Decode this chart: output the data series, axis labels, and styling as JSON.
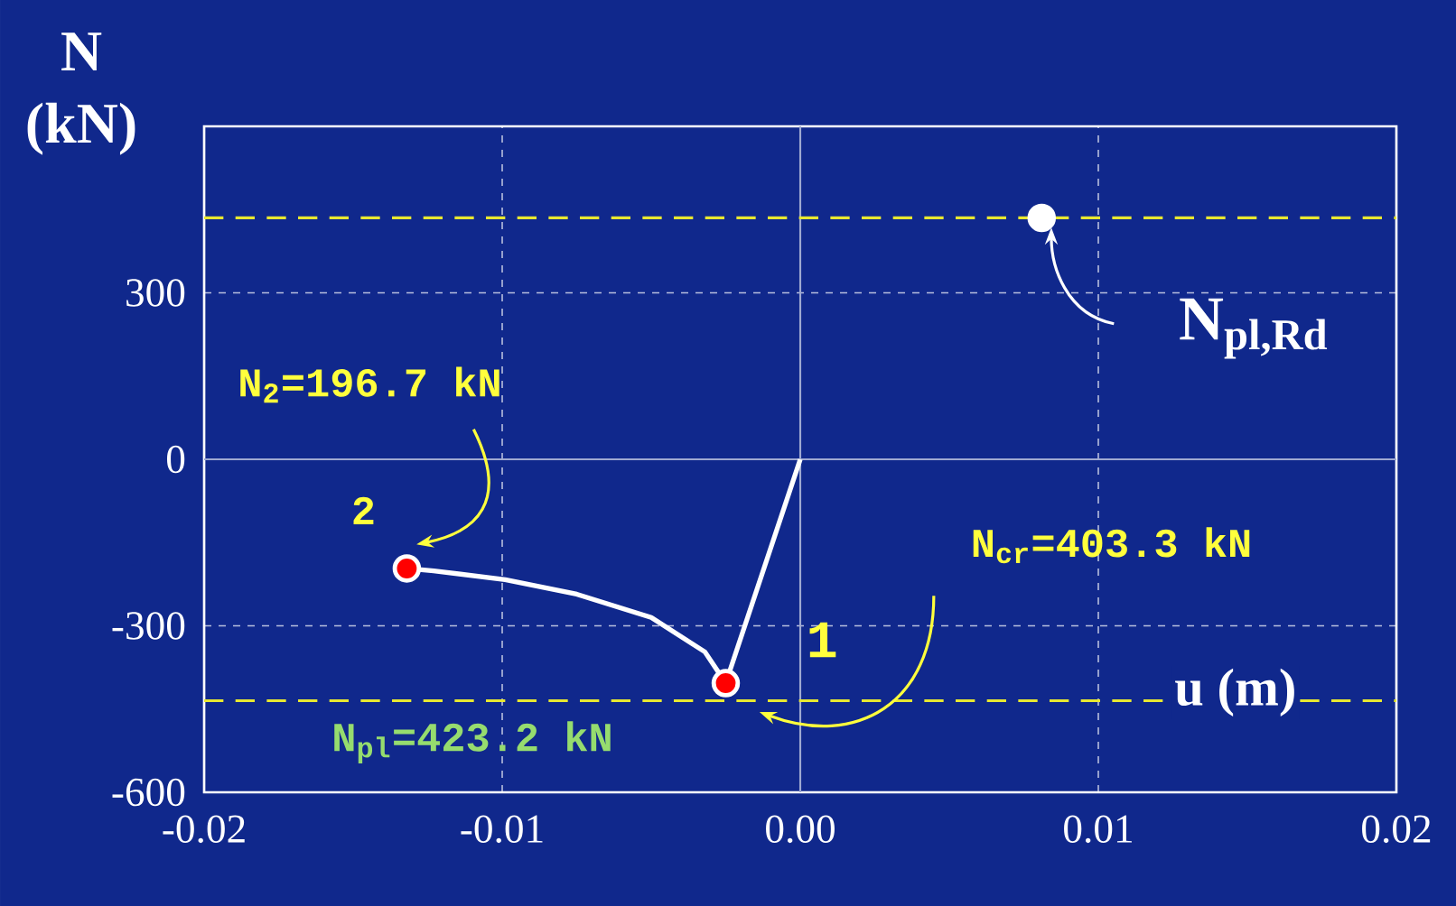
{
  "chart_data": {
    "type": "line",
    "xlabel": "u (m)",
    "ylabel": "N (kN)",
    "xlim": [
      -0.02,
      0.02
    ],
    "xticks": [
      {
        "value": -0.02,
        "label": "-0.02"
      },
      {
        "value": -0.01,
        "label": "-0.01"
      },
      {
        "value": 0,
        "label": "0.00"
      },
      {
        "value": 0.01,
        "label": "0.01"
      },
      {
        "value": 0.02,
        "label": "0.02"
      }
    ],
    "ylim": [
      -600,
      600
    ],
    "yticks": [
      -600,
      -300,
      0,
      300
    ],
    "grid": true,
    "series": [
      {
        "type": "line",
        "color": "#ffffff",
        "marker": "none",
        "x": [
          0,
          -0.0025,
          -0.0032,
          -0.005,
          -0.0075,
          -0.0099,
          -0.0123,
          -0.0132
        ],
        "values": [
          0,
          -403.3,
          -347,
          -285,
          -243,
          -217,
          -201,
          -196.7
        ]
      },
      {
        "type": "scatter",
        "color": "#ff0000",
        "marker": "circle",
        "x": [
          -0.0132,
          -0.0025
        ],
        "values": [
          -196.7,
          -403.3
        ]
      },
      {
        "type": "scatter",
        "color": "#ffffff",
        "marker": "circle",
        "x": [
          0.0081
        ],
        "values": [
          435
        ]
      }
    ],
    "ref_lines": [
      {
        "axis": "y",
        "value": 435,
        "color": "#e8e830",
        "line_style": "dashed"
      },
      {
        "axis": "y",
        "value": -435,
        "color": "#e8e830",
        "line_style": "dashed"
      }
    ],
    "annotations": [
      {
        "text": "2",
        "x": -0.0132,
        "y": -196.7
      },
      {
        "text": "1",
        "x": -0.0025,
        "y": -403.3
      },
      "N$_{2}$=196.7 kN",
      "N$_{cr}$=403.3 kN",
      "N$_{pl}$=423.2 kN",
      {
        "text": "N$_{pl,Rd}$",
        "x": 0.0081,
        "y": 435
      }
    ]
  }
}
